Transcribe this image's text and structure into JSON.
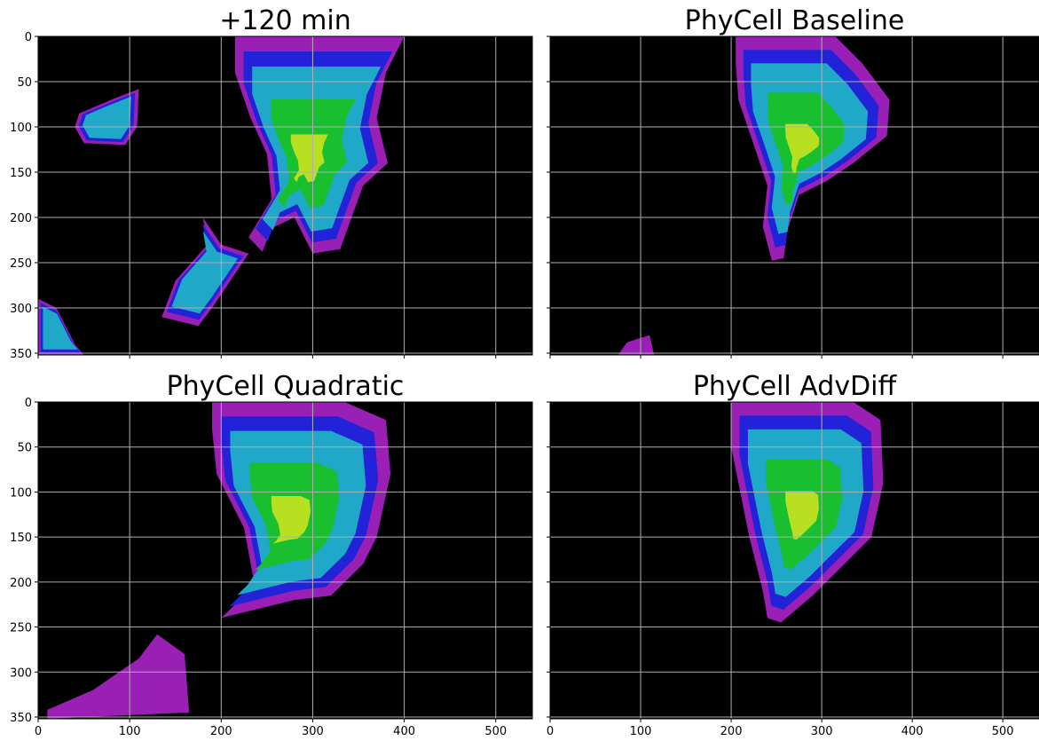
{
  "chart_data": [
    {
      "type": "image",
      "title": "+120 min",
      "xlim": [
        0,
        540
      ],
      "ylim": [
        352,
        0
      ],
      "xticks": [
        0,
        100,
        200,
        300,
        400,
        500
      ],
      "yticks": [
        0,
        50,
        100,
        150,
        200,
        250,
        300,
        350
      ],
      "grid": true,
      "show_xlabels": false,
      "show_ylabels": true
    },
    {
      "type": "image",
      "title": "PhyCell Baseline",
      "xlim": [
        0,
        540
      ],
      "ylim": [
        352,
        0
      ],
      "xticks": [
        0,
        100,
        200,
        300,
        400,
        500
      ],
      "yticks": [
        0,
        50,
        100,
        150,
        200,
        250,
        300,
        350
      ],
      "grid": true,
      "show_xlabels": false,
      "show_ylabels": false
    },
    {
      "type": "image",
      "title": "PhyCell Quadratic",
      "xlim": [
        0,
        540
      ],
      "ylim": [
        352,
        0
      ],
      "xticks": [
        0,
        100,
        200,
        300,
        400,
        500
      ],
      "yticks": [
        0,
        50,
        100,
        150,
        200,
        250,
        300,
        350
      ],
      "grid": true,
      "show_xlabels": true,
      "show_ylabels": true
    },
    {
      "type": "image",
      "title": "PhyCell AdvDiff",
      "xlim": [
        0,
        540
      ],
      "ylim": [
        352,
        0
      ],
      "xticks": [
        0,
        100,
        200,
        300,
        400,
        500
      ],
      "yticks": [
        0,
        50,
        100,
        150,
        200,
        250,
        300,
        350
      ],
      "grid": true,
      "show_xlabels": true,
      "show_ylabels": false
    }
  ]
}
